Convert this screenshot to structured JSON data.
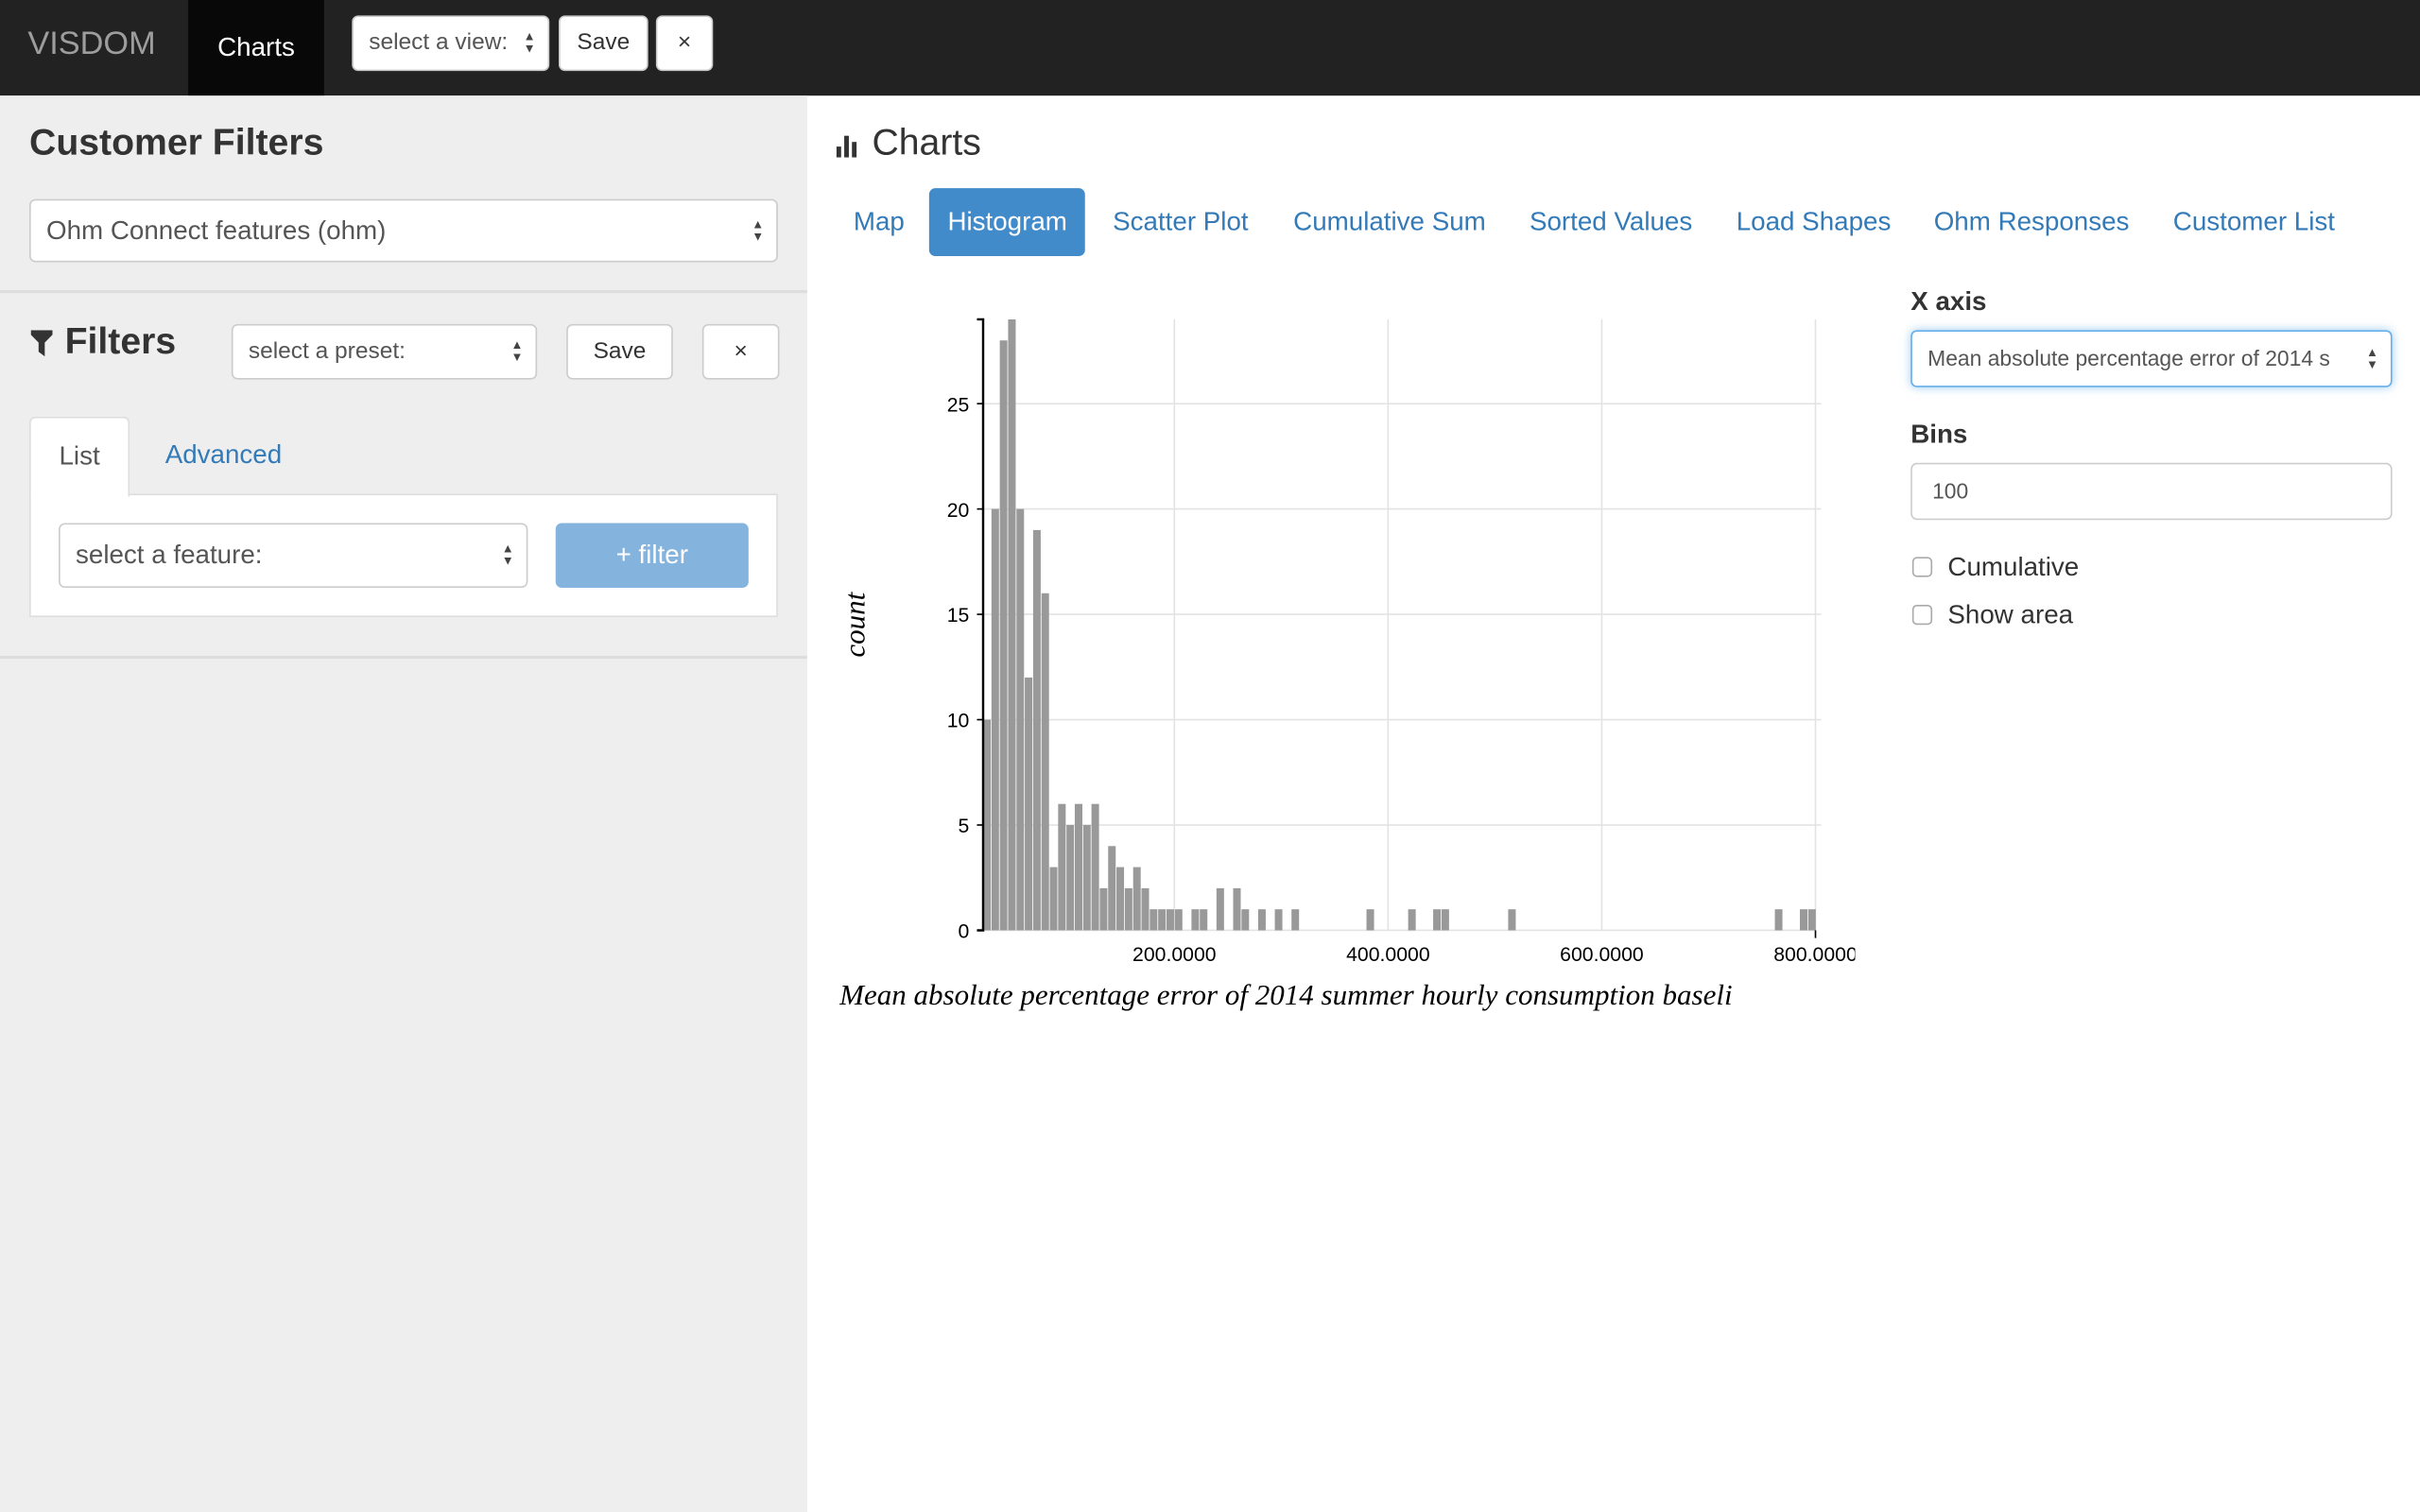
{
  "topbar": {
    "brand": "VISDOM",
    "nav_charts": "Charts",
    "view_select": "select a view:",
    "save": "Save",
    "close": "×"
  },
  "sidebar": {
    "title": "Customer Filters",
    "feature_set": "Ohm Connect features (ohm)",
    "filters_title": "Filters",
    "preset_select": "select a preset:",
    "save": "Save",
    "close": "×",
    "tabs": [
      {
        "label": "List",
        "active": true
      },
      {
        "label": "Advanced",
        "active": false
      }
    ],
    "feature_select": "select a feature:",
    "add_filter": "+ filter"
  },
  "main": {
    "title": "Charts",
    "tabs": [
      {
        "label": "Map"
      },
      {
        "label": "Histogram",
        "active": true
      },
      {
        "label": "Scatter Plot"
      },
      {
        "label": "Cumulative Sum"
      },
      {
        "label": "Sorted Values"
      },
      {
        "label": "Load Shapes"
      },
      {
        "label": "Ohm Responses"
      },
      {
        "label": "Customer List"
      }
    ],
    "controls": {
      "xaxis_label": "X axis",
      "xaxis_value": "Mean absolute percentage error of 2014 s",
      "bins_label": "Bins",
      "bins_value": "100",
      "cumulative_label": "Cumulative",
      "cumulative_checked": false,
      "show_area_label": "Show area",
      "show_area_checked": false
    }
  },
  "colors": {
    "accent": "#428bca",
    "link": "#337ab7",
    "bar": "#999999",
    "topbar": "#222222"
  },
  "chart_data": {
    "type": "bar",
    "subtype": "histogram",
    "xlabel": "Mean absolute percentage error of 2014 summer hourly consumption baseli",
    "ylabel": "count",
    "xlim": [
      21,
      801
    ],
    "ylim": [
      0,
      29
    ],
    "bins": 100,
    "x_ticks": [
      200,
      400,
      600,
      800
    ],
    "x_tick_labels": [
      "200.0000",
      "400.0000",
      "600.0000",
      "800.0000"
    ],
    "y_ticks": [
      0,
      5,
      10,
      15,
      20,
      25
    ],
    "y_tick_labels": [
      "0",
      "5",
      "10",
      "15",
      "20",
      "25"
    ],
    "grid": true,
    "values": [
      10,
      20,
      28,
      29,
      20,
      12,
      19,
      16,
      3,
      6,
      5,
      6,
      5,
      6,
      2,
      4,
      3,
      2,
      3,
      2,
      1,
      1,
      1,
      1,
      0,
      1,
      1,
      0,
      2,
      0,
      2,
      1,
      0,
      1,
      0,
      1,
      0,
      1,
      0,
      0,
      0,
      0,
      0,
      0,
      0,
      0,
      1,
      0,
      0,
      0,
      0,
      1,
      0,
      0,
      1,
      1,
      0,
      0,
      0,
      0,
      0,
      0,
      0,
      1,
      0,
      0,
      0,
      0,
      0,
      0,
      0,
      0,
      0,
      0,
      0,
      0,
      0,
      0,
      0,
      0,
      0,
      0,
      0,
      0,
      0,
      0,
      0,
      0,
      0,
      0,
      0,
      0,
      0,
      0,
      0,
      1,
      0,
      0,
      1,
      1
    ]
  }
}
